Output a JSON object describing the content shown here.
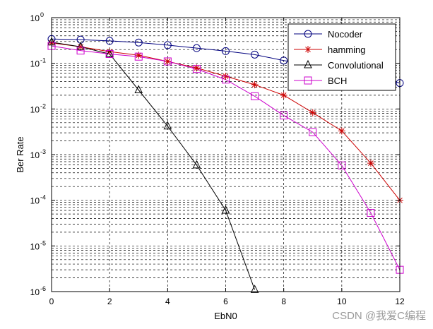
{
  "chart_data": {
    "type": "line",
    "xlabel": "EbN0",
    "ylabel": "Ber Rate",
    "xlim": [
      0,
      12
    ],
    "ylim": [
      1e-06,
      1
    ],
    "yscale": "log",
    "grid": true,
    "legend_position": "top-right",
    "xticks": [
      0,
      2,
      4,
      6,
      8,
      10,
      12
    ],
    "yticks": [
      {
        "base": "10",
        "exp": "0",
        "value": 1
      },
      {
        "base": "10",
        "exp": "-1",
        "value": 0.1
      },
      {
        "base": "10",
        "exp": "-2",
        "value": 0.01
      },
      {
        "base": "10",
        "exp": "-3",
        "value": 0.001
      },
      {
        "base": "10",
        "exp": "-4",
        "value": 0.0001
      },
      {
        "base": "10",
        "exp": "-5",
        "value": 1e-05
      },
      {
        "base": "10",
        "exp": "-6",
        "value": 1e-06
      }
    ],
    "series": [
      {
        "name": "Nocoder",
        "color": "#00007f",
        "marker": "circle",
        "x": [
          0,
          1,
          2,
          3,
          4,
          5,
          6,
          7,
          8,
          9,
          10,
          11,
          12
        ],
        "y": [
          0.34,
          0.33,
          0.31,
          0.285,
          0.25,
          0.215,
          0.185,
          0.155,
          0.115,
          0.09,
          0.075,
          0.055,
          0.037
        ]
      },
      {
        "name": "hamming",
        "color": "#cc0000",
        "marker": "star",
        "x": [
          0,
          1,
          2,
          3,
          4,
          5,
          6,
          7,
          8,
          9,
          10,
          11,
          12
        ],
        "y": [
          0.28,
          0.23,
          0.18,
          0.15,
          0.11,
          0.079,
          0.052,
          0.034,
          0.02,
          0.0083,
          0.0033,
          0.00065,
          0.0001
        ]
      },
      {
        "name": "Convolutional",
        "color": "#000000",
        "marker": "triangle",
        "x": [
          0,
          1,
          2,
          3,
          4,
          5,
          6,
          7
        ],
        "y": [
          0.29,
          0.23,
          0.16,
          0.026,
          0.0042,
          0.00059,
          6e-05,
          1.1e-06
        ]
      },
      {
        "name": "BCH",
        "color": "#cc00cc",
        "marker": "square",
        "x": [
          0,
          1,
          2,
          3,
          4,
          5,
          6,
          7,
          8,
          9,
          10,
          11,
          12
        ],
        "y": [
          0.24,
          0.19,
          0.16,
          0.14,
          0.11,
          0.075,
          0.044,
          0.019,
          0.0072,
          0.0031,
          0.00058,
          5.3e-05,
          3e-06
        ]
      }
    ]
  },
  "watermark": "CSDN @我爱C编程"
}
